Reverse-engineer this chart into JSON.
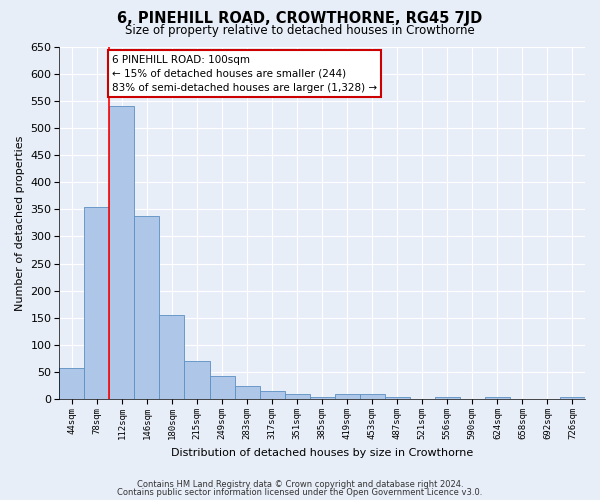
{
  "title": "6, PINEHILL ROAD, CROWTHORNE, RG45 7JD",
  "subtitle": "Size of property relative to detached houses in Crowthorne",
  "xlabel": "Distribution of detached houses by size in Crowthorne",
  "ylabel": "Number of detached properties",
  "footnote1": "Contains HM Land Registry data © Crown copyright and database right 2024.",
  "footnote2": "Contains public sector information licensed under the Open Government Licence v3.0.",
  "bar_labels": [
    "44sqm",
    "78sqm",
    "112sqm",
    "146sqm",
    "180sqm",
    "215sqm",
    "249sqm",
    "283sqm",
    "317sqm",
    "351sqm",
    "385sqm",
    "419sqm",
    "453sqm",
    "487sqm",
    "521sqm",
    "556sqm",
    "590sqm",
    "624sqm",
    "658sqm",
    "692sqm",
    "726sqm"
  ],
  "bar_values": [
    57,
    354,
    541,
    338,
    155,
    70,
    42,
    25,
    16,
    10,
    5,
    9,
    10,
    5,
    1,
    5,
    1,
    5,
    1,
    1,
    5
  ],
  "bar_color": "#aec6e8",
  "bar_edge_color": "#5a8fc2",
  "annotation_text": "6 PINEHILL ROAD: 100sqm\n← 15% of detached houses are smaller (244)\n83% of semi-detached houses are larger (1,328) →",
  "red_line_x": 1.5,
  "ylim": [
    0,
    650
  ],
  "yticks": [
    0,
    50,
    100,
    150,
    200,
    250,
    300,
    350,
    400,
    450,
    500,
    550,
    600,
    650
  ],
  "background_color": "#e8eef8",
  "grid_color": "#ffffff",
  "annotation_box_color": "#cc0000"
}
